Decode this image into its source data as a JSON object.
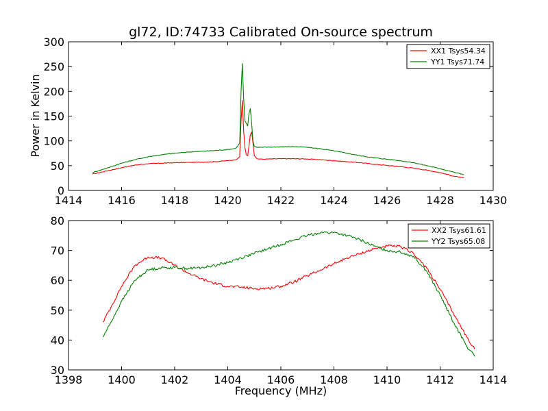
{
  "chart_data": [
    {
      "type": "line",
      "title": "gl72, ID:74733 Calibrated On-source spectrum",
      "xlabel": "",
      "ylabel": "Power in Kelvin",
      "xlim": [
        1414,
        1430
      ],
      "ylim": [
        0,
        300
      ],
      "xticks": [
        1414,
        1416,
        1418,
        1420,
        1422,
        1424,
        1426,
        1428,
        1430
      ],
      "xtick_labels": [
        "1414",
        "1416",
        "1418",
        "1420",
        "1422",
        "1424",
        "1426",
        "1428",
        "1430"
      ],
      "yticks": [
        0,
        50,
        100,
        150,
        200,
        250,
        300
      ],
      "ytick_labels": [
        "0",
        "50",
        "100",
        "150",
        "200",
        "250",
        "300"
      ],
      "legend_position": "top-right",
      "series": [
        {
          "name": "XX1 Tsys54.34",
          "color": "#ff0000",
          "x": [
            1414.9,
            1415.5,
            1416.0,
            1416.5,
            1417.0,
            1417.5,
            1418.0,
            1418.5,
            1419.0,
            1419.5,
            1420.0,
            1420.3,
            1420.45,
            1420.5,
            1420.55,
            1420.6,
            1420.65,
            1420.7,
            1420.75,
            1420.8,
            1420.85,
            1420.9,
            1420.95,
            1421.0,
            1421.1,
            1421.3,
            1421.6,
            1422.0,
            1422.5,
            1423.0,
            1423.5,
            1424.0,
            1424.5,
            1425.0,
            1425.5,
            1426.0,
            1426.5,
            1427.0,
            1427.5,
            1428.0,
            1428.5,
            1428.9
          ],
          "values": [
            33,
            40,
            46,
            51,
            54,
            55,
            56,
            56.5,
            57,
            58,
            60,
            62,
            68,
            140,
            182,
            120,
            85,
            72,
            70,
            90,
            112,
            118,
            95,
            70,
            64,
            63,
            63.5,
            64,
            64,
            63.5,
            62,
            60,
            58,
            56,
            53,
            50.5,
            48,
            45,
            41,
            36,
            29,
            25
          ]
        },
        {
          "name": "YY1 Tsys71.74",
          "color": "#008000",
          "x": [
            1414.9,
            1415.5,
            1416.0,
            1416.5,
            1417.0,
            1417.5,
            1418.0,
            1418.5,
            1419.0,
            1419.5,
            1420.0,
            1420.3,
            1420.45,
            1420.5,
            1420.55,
            1420.6,
            1420.65,
            1420.7,
            1420.75,
            1420.8,
            1420.85,
            1420.9,
            1420.95,
            1421.0,
            1421.1,
            1421.3,
            1421.6,
            1422.0,
            1422.5,
            1423.0,
            1423.5,
            1424.0,
            1424.5,
            1425.0,
            1425.5,
            1426.0,
            1426.5,
            1427.0,
            1427.5,
            1428.0,
            1428.5,
            1428.9
          ],
          "values": [
            36,
            46,
            55,
            62,
            68,
            72,
            75,
            77.5,
            79,
            80.5,
            82.5,
            85,
            95,
            200,
            256,
            185,
            140,
            135,
            130,
            155,
            165,
            135,
            100,
            89,
            87,
            87,
            87.5,
            88,
            88.5,
            87,
            84,
            80,
            75,
            70,
            66,
            63,
            60,
            56,
            50,
            44,
            37,
            32
          ]
        }
      ]
    },
    {
      "type": "line",
      "title": "",
      "xlabel": "Frequency (MHz)",
      "ylabel": "",
      "xlim": [
        1398,
        1414
      ],
      "ylim": [
        30,
        80
      ],
      "xticks": [
        1398,
        1400,
        1402,
        1404,
        1406,
        1408,
        1410,
        1412,
        1414
      ],
      "xtick_labels": [
        "1398",
        "1400",
        "1402",
        "1404",
        "1406",
        "1408",
        "1410",
        "1412",
        "1414"
      ],
      "yticks": [
        30,
        40,
        50,
        60,
        70,
        80
      ],
      "ytick_labels": [
        "30",
        "40",
        "50",
        "60",
        "70",
        "80"
      ],
      "legend_position": "top-right",
      "series": [
        {
          "name": "XX2 Tsys61.61",
          "color": "#ff0000",
          "x": [
            1399.3,
            1399.6,
            1400.0,
            1400.5,
            1401.0,
            1401.5,
            1402.0,
            1402.5,
            1403.0,
            1403.5,
            1404.0,
            1404.5,
            1405.0,
            1405.5,
            1406.0,
            1406.5,
            1407.0,
            1407.5,
            1408.0,
            1408.5,
            1409.0,
            1409.5,
            1410.0,
            1410.5,
            1411.0,
            1411.5,
            1412.0,
            1412.5,
            1413.0,
            1413.3
          ],
          "values": [
            46,
            51,
            58,
            65,
            67.8,
            67.5,
            65,
            62.5,
            60.5,
            59,
            58,
            57.7,
            57.2,
            57.3,
            58,
            59.5,
            61.5,
            63.5,
            65.5,
            67.5,
            69,
            70.5,
            71.5,
            71.3,
            69,
            64,
            57,
            49,
            41,
            37
          ]
        },
        {
          "name": "YY2 Tsys65.08",
          "color": "#008000",
          "x": [
            1399.3,
            1399.6,
            1400.0,
            1400.5,
            1401.0,
            1401.5,
            1402.0,
            1402.5,
            1403.0,
            1403.5,
            1404.0,
            1404.5,
            1405.0,
            1405.5,
            1406.0,
            1406.5,
            1407.0,
            1407.5,
            1408.0,
            1408.5,
            1409.0,
            1409.5,
            1410.0,
            1410.5,
            1411.0,
            1411.5,
            1412.0,
            1412.5,
            1413.0,
            1413.3
          ],
          "values": [
            41,
            46,
            53,
            60,
            63.5,
            64.2,
            64.3,
            64,
            64.2,
            65,
            66,
            67.5,
            69,
            70.5,
            72,
            73.5,
            75,
            76,
            76,
            75,
            73.5,
            71.5,
            70,
            69.5,
            68,
            63,
            55,
            46,
            38,
            34.5
          ]
        }
      ]
    }
  ]
}
